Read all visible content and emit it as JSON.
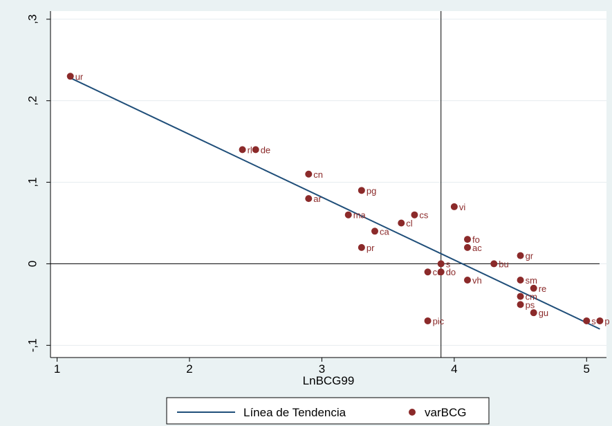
{
  "chart_data": {
    "type": "scatter",
    "xlabel": "LnBCG99",
    "ylabel": "",
    "xlim": [
      0.95,
      5.15
    ],
    "ylim": [
      -0.115,
      0.31
    ],
    "x_ticks": [
      1,
      2,
      3,
      4,
      5
    ],
    "x_tick_labels": [
      "1",
      "2",
      "3",
      "4",
      "5"
    ],
    "y_ticks": [
      -0.1,
      0,
      0.1,
      0.2,
      0.3
    ],
    "y_tick_labels": [
      "-,1",
      "0",
      ",1",
      ",2",
      ",3"
    ],
    "grid": true,
    "reference_lines": {
      "x": 3.9,
      "y": 0
    },
    "legend": {
      "placement": "bottom",
      "entries": [
        "Línea de Tendencia",
        "varBCG"
      ]
    },
    "series": [
      {
        "name": "Línea de Tendencia",
        "kind": "line",
        "color": "#1f4e79",
        "points": [
          [
            1.1,
            0.228
          ],
          [
            5.1,
            -0.08
          ]
        ]
      },
      {
        "name": "varBCG",
        "kind": "scatter",
        "color": "#8b2a2a",
        "points": [
          {
            "x": 1.1,
            "y": 0.23,
            "label": "ur"
          },
          {
            "x": 2.4,
            "y": 0.14,
            "label": "rl"
          },
          {
            "x": 2.5,
            "y": 0.14,
            "label": "de"
          },
          {
            "x": 2.9,
            "y": 0.11,
            "label": "cn"
          },
          {
            "x": 2.9,
            "y": 0.08,
            "label": "ar"
          },
          {
            "x": 3.3,
            "y": 0.09,
            "label": "pg"
          },
          {
            "x": 3.2,
            "y": 0.06,
            "label": "ma"
          },
          {
            "x": 3.4,
            "y": 0.04,
            "label": "ca"
          },
          {
            "x": 3.3,
            "y": 0.02,
            "label": "pr"
          },
          {
            "x": 3.6,
            "y": 0.05,
            "label": "cl"
          },
          {
            "x": 3.7,
            "y": 0.06,
            "label": "cs"
          },
          {
            "x": 4.0,
            "y": 0.07,
            "label": "vi"
          },
          {
            "x": 4.1,
            "y": 0.03,
            "label": "fo"
          },
          {
            "x": 4.1,
            "y": 0.02,
            "label": "ac"
          },
          {
            "x": 3.9,
            "y": 0.0,
            "label": "s"
          },
          {
            "x": 3.8,
            "y": -0.01,
            "label": "cc"
          },
          {
            "x": 3.9,
            "y": -0.01,
            "label": "do"
          },
          {
            "x": 4.1,
            "y": -0.02,
            "label": "vh"
          },
          {
            "x": 4.3,
            "y": 0.0,
            "label": "bu"
          },
          {
            "x": 4.5,
            "y": 0.01,
            "label": "gr"
          },
          {
            "x": 4.5,
            "y": -0.02,
            "label": "sm"
          },
          {
            "x": 4.6,
            "y": -0.03,
            "label": "re"
          },
          {
            "x": 4.5,
            "y": -0.04,
            "label": "cm"
          },
          {
            "x": 4.5,
            "y": -0.05,
            "label": "ps"
          },
          {
            "x": 4.6,
            "y": -0.06,
            "label": "gu"
          },
          {
            "x": 3.8,
            "y": -0.07,
            "label": "pic"
          },
          {
            "x": 5.0,
            "y": -0.07,
            "label": "s"
          },
          {
            "x": 5.1,
            "y": -0.07,
            "label": "p"
          }
        ]
      }
    ]
  }
}
